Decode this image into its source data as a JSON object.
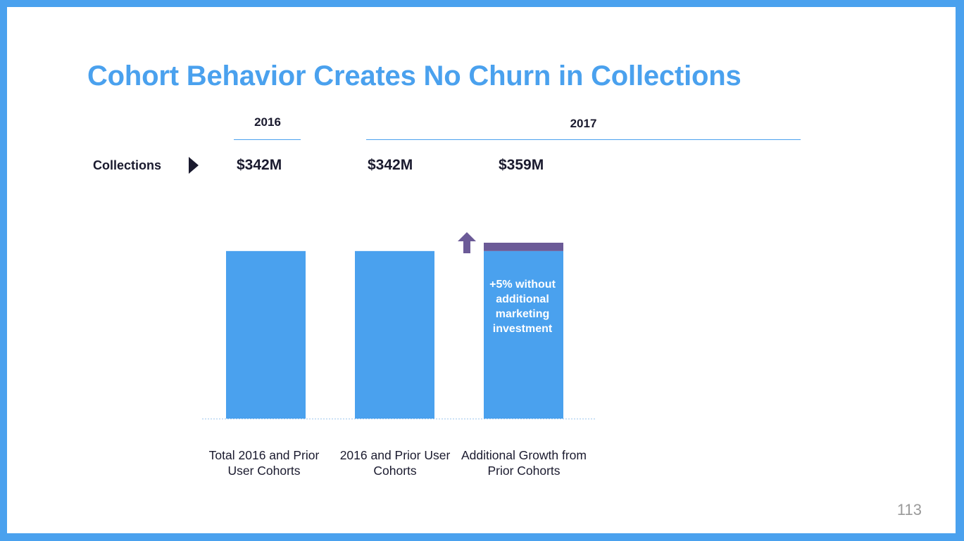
{
  "title": "Cohort Behavior Creates No Churn in Collections",
  "years": [
    "2016",
    "2017"
  ],
  "row_label": "Collections",
  "values": [
    "$342M",
    "$342M",
    "$359M"
  ],
  "annotation": "+5% without additional marketing investment",
  "page_number": "113",
  "colors": {
    "accent": "#4aa1ee",
    "growth": "#6b5a97",
    "text": "#1a1a2e"
  },
  "icons": [
    "play-arrow-icon",
    "up-arrow-icon"
  ],
  "chart_data": {
    "type": "bar",
    "categories": [
      "Total 2016 and Prior User Cohorts",
      "2016 and Prior User Cohorts",
      "Additional Growth from Prior Cohorts"
    ],
    "series": [
      {
        "name": "",
        "values": [
          342,
          342,
          342
        ],
        "color": "#4aa1ee"
      },
      {
        "name": "",
        "values": [
          0,
          0,
          17
        ],
        "color": "#6b5a97"
      }
    ],
    "stacked": true,
    "ylim": [
      0,
      359
    ],
    "grid": false,
    "legend": "none"
  }
}
